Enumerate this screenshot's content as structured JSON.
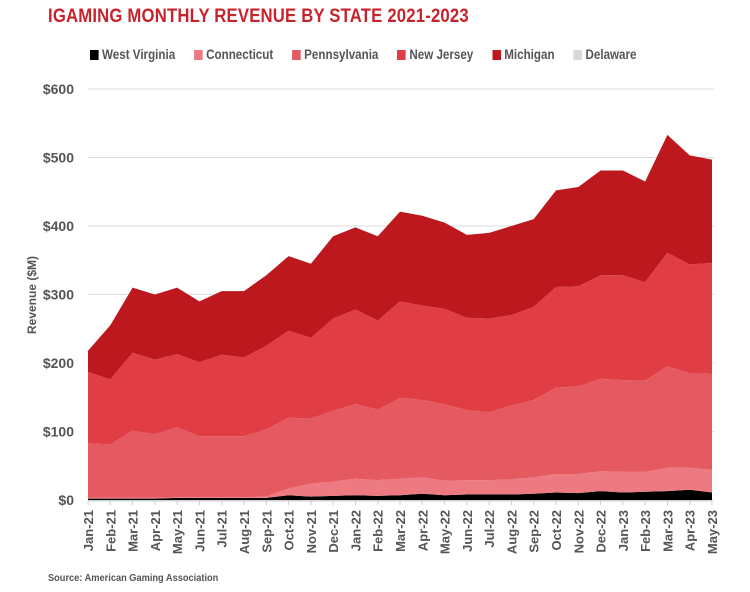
{
  "chart_data": {
    "type": "area",
    "stacked": true,
    "title": "IGAMING MONTHLY REVENUE BY STATE 2021-2023",
    "xlabel": "",
    "ylabel": "Revenue ($M)",
    "ylim": [
      0,
      600
    ],
    "yticks": [
      0,
      100,
      200,
      300,
      400,
      500,
      600
    ],
    "ytick_labels": [
      "$0",
      "$100",
      "$200",
      "$300",
      "$400",
      "$500",
      "$600"
    ],
    "grid": true,
    "legend_position": "top",
    "source": "Source: American Gaming Association",
    "categories": [
      "Jan-21",
      "Feb-21",
      "Mar-21",
      "Apr-21",
      "May-21",
      "Jun-21",
      "Jul-21",
      "Aug-21",
      "Sep-21",
      "Oct-21",
      "Nov-21",
      "Dec-21",
      "Jan-22",
      "Feb-22",
      "Mar-22",
      "Apr-22",
      "May-22",
      "Jun-22",
      "Jul-22",
      "Aug-22",
      "Sep-22",
      "Oct-22",
      "Nov-22",
      "Dec-22",
      "Jan-23",
      "Feb-23",
      "Mar-23",
      "Apr-23",
      "May-23"
    ],
    "series": [
      {
        "name": "West Virginia",
        "color": "#000000",
        "values": [
          2,
          2,
          2,
          2,
          3,
          3,
          3,
          3,
          3,
          7,
          5,
          6,
          7,
          6,
          7,
          9,
          7,
          8,
          8,
          8,
          9,
          11,
          10,
          13,
          11,
          12,
          13,
          15,
          11
        ]
      },
      {
        "name": "Connecticut",
        "color": "#ec7a80",
        "values": [
          1,
          1,
          1,
          1,
          1,
          1,
          1,
          1,
          2,
          10,
          19,
          21,
          24,
          23,
          24,
          24,
          21,
          21,
          21,
          22,
          24,
          27,
          28,
          29,
          30,
          29,
          34,
          32,
          33
        ]
      },
      {
        "name": "Pennsylvania",
        "color": "#e55a61",
        "values": [
          80,
          78,
          98,
          93,
          102,
          89,
          89,
          89,
          98,
          103,
          95,
          103,
          109,
          103,
          118,
          113,
          112,
          102,
          99,
          108,
          113,
          126,
          128,
          135,
          134,
          133,
          148,
          138,
          140
        ]
      },
      {
        "name": "New Jersey",
        "color": "#e03e44",
        "values": [
          104,
          95,
          114,
          109,
          107,
          108,
          119,
          115,
          122,
          127,
          118,
          135,
          138,
          130,
          141,
          138,
          139,
          135,
          137,
          132,
          136,
          147,
          146,
          151,
          153,
          144,
          166,
          159,
          162
        ]
      },
      {
        "name": "Michigan",
        "color": "#bd181e",
        "values": [
          31,
          79,
          95,
          95,
          97,
          89,
          93,
          97,
          103,
          109,
          108,
          120,
          120,
          123,
          131,
          131,
          126,
          121,
          125,
          130,
          128,
          141,
          145,
          153,
          153,
          147,
          172,
          159,
          151
        ]
      },
      {
        "name": "Delaware",
        "color": "#d9d9d9",
        "values": [
          0,
          0,
          0,
          0,
          0,
          0,
          0,
          0,
          0,
          0,
          0,
          0,
          0,
          0,
          0,
          0,
          0,
          0,
          0,
          0,
          0,
          0,
          0,
          0,
          0,
          0,
          0,
          0,
          0
        ]
      }
    ]
  }
}
